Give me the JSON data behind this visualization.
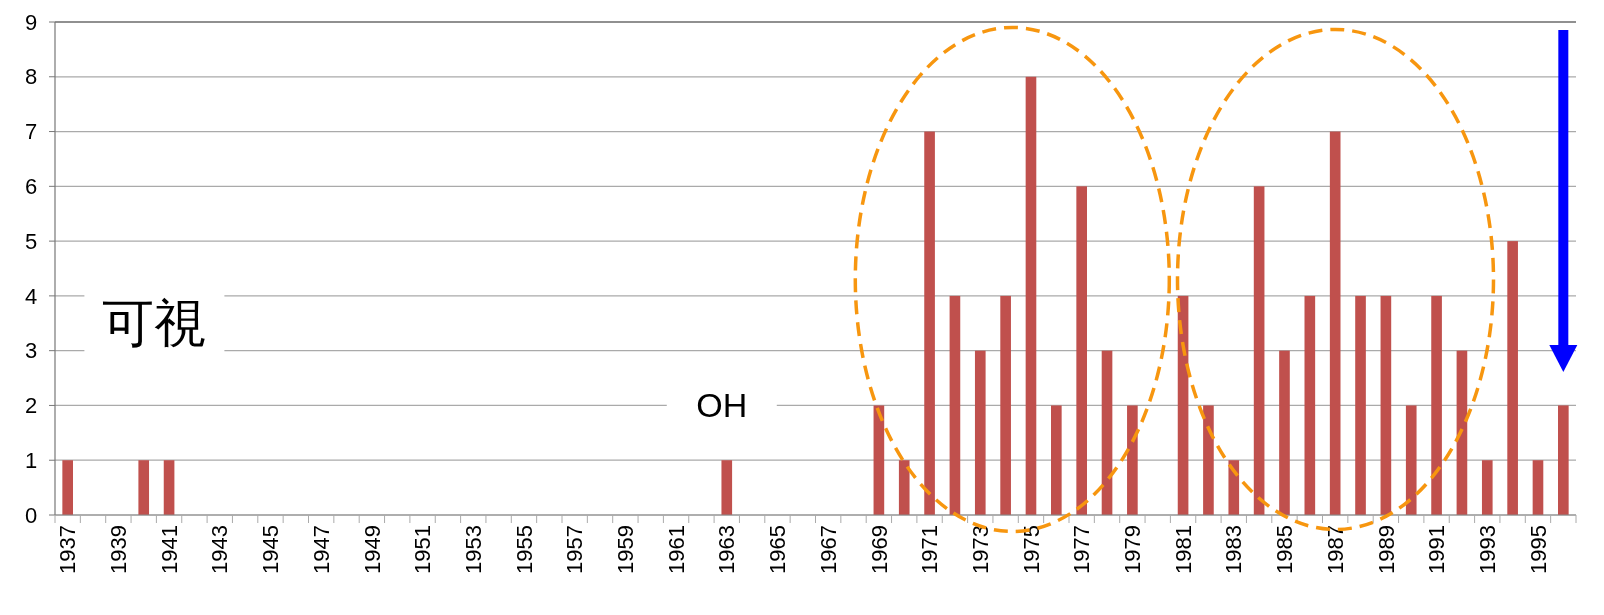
{
  "chart_data": {
    "type": "bar",
    "categories": [
      "1937",
      null,
      "1939",
      null,
      "1941",
      null,
      "1943",
      null,
      "1945",
      null,
      "1947",
      null,
      "1949",
      null,
      "1951",
      null,
      "1953",
      null,
      "1955",
      null,
      "1957",
      null,
      "1959",
      null,
      "1961",
      null,
      "1963",
      null,
      "1965",
      null,
      "1967",
      null,
      "1969",
      null,
      "1971",
      null,
      "1973",
      null,
      "1975",
      null,
      "1977",
      null,
      "1979",
      null,
      "1981",
      null,
      "1983",
      null,
      "1985",
      null,
      "1987",
      null,
      "1989",
      null,
      "1991",
      null,
      "1993",
      null,
      "1995",
      null
    ],
    "values": [
      1,
      0,
      0,
      1,
      1,
      0,
      0,
      0,
      0,
      0,
      0,
      0,
      0,
      0,
      0,
      0,
      0,
      0,
      0,
      0,
      0,
      0,
      0,
      0,
      0,
      0,
      1,
      0,
      0,
      0,
      0,
      0,
      2,
      1,
      7,
      4,
      3,
      4,
      8,
      2,
      6,
      3,
      2,
      0,
      4,
      2,
      1,
      6,
      3,
      4,
      7,
      4,
      4,
      2,
      4,
      3,
      1,
      5,
      1,
      2
    ],
    "color": "#c0504d",
    "ylim": [
      0,
      9
    ],
    "yticks": [
      0,
      1,
      2,
      3,
      4,
      5,
      6,
      7,
      8,
      9
    ],
    "grid": "y",
    "annotations": [
      "可視",
      "OH"
    ]
  }
}
